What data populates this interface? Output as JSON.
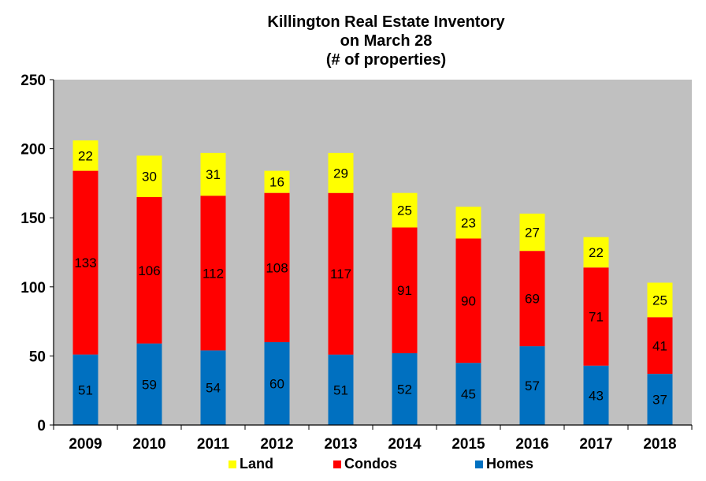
{
  "chart_data": {
    "type": "bar",
    "stacked": true,
    "title": [
      "Killington Real Estate Inventory",
      "on March 28",
      "(# of properties)"
    ],
    "categories": [
      "2009",
      "2010",
      "2011",
      "2012",
      "2013",
      "2014",
      "2015",
      "2016",
      "2017",
      "2018"
    ],
    "series": [
      {
        "name": "Homes",
        "color": "#0070C0",
        "values": [
          51,
          59,
          54,
          60,
          51,
          52,
          45,
          57,
          43,
          37
        ]
      },
      {
        "name": "Condos",
        "color": "#FF0000",
        "values": [
          133,
          106,
          112,
          108,
          117,
          91,
          90,
          69,
          71,
          41
        ]
      },
      {
        "name": "Land",
        "color": "#FFFF00",
        "values": [
          22,
          30,
          31,
          16,
          29,
          25,
          23,
          27,
          22,
          25
        ]
      }
    ],
    "legend_order": [
      "Land",
      "Condos",
      "Homes"
    ],
    "legend_position": "bottom",
    "ylim": [
      0,
      250
    ],
    "yticks": [
      0,
      50,
      100,
      150,
      200,
      250
    ],
    "plot_background": "#C0C0C0",
    "grid": false,
    "data_labels": true
  }
}
